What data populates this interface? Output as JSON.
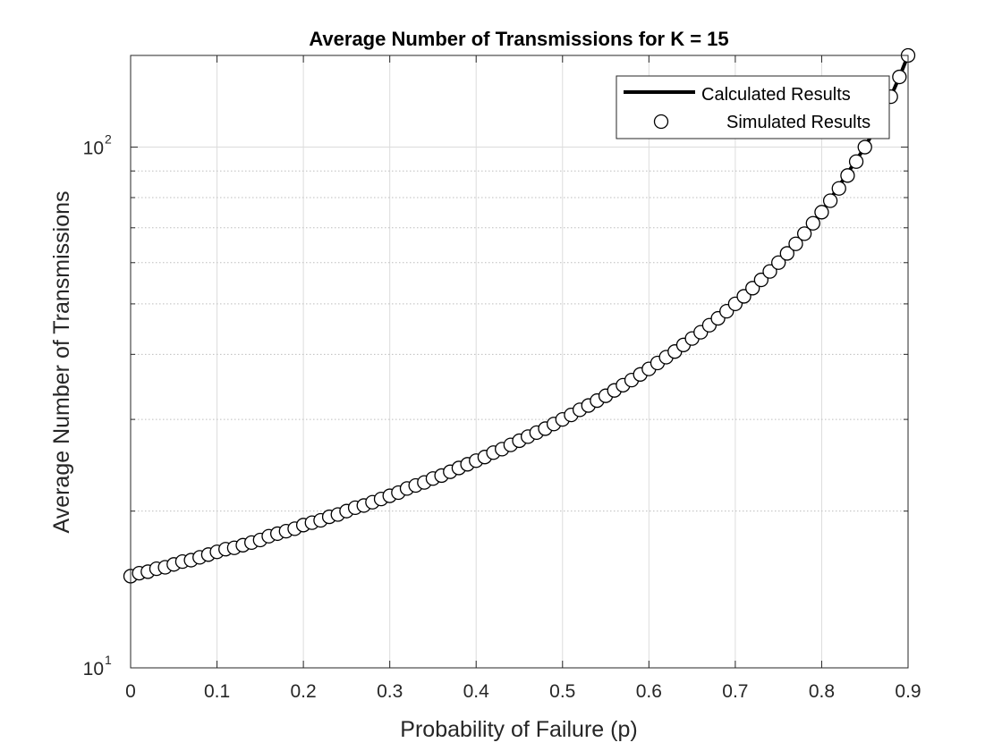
{
  "chart_data": {
    "type": "line",
    "title": "Average Number of Transmissions for K = 15",
    "xlabel": "Probability of Failure (p)",
    "ylabel": "Average Number of Transmissions",
    "xlim": [
      0,
      0.9
    ],
    "ylim": [
      10,
      150
    ],
    "yscale": "log",
    "grid": true,
    "legend_position": "top-right",
    "x_ticks": [
      "0",
      "0.1",
      "0.2",
      "0.3",
      "0.4",
      "0.5",
      "0.6",
      "0.7",
      "0.8",
      "0.9"
    ],
    "y_ticks": [
      {
        "base": "10",
        "exp": "1"
      },
      {
        "base": "10",
        "exp": "2"
      }
    ],
    "legend": [
      {
        "label": "Calculated Results",
        "style": "line"
      },
      {
        "label": "Simulated Results",
        "style": "marker"
      }
    ],
    "series": [
      {
        "name": "Calculated Results",
        "style": "line",
        "color": "#000000",
        "x": [
          0,
          0.05,
          0.1,
          0.15,
          0.2,
          0.25,
          0.3,
          0.35,
          0.4,
          0.45,
          0.5,
          0.55,
          0.6,
          0.65,
          0.7,
          0.75,
          0.8,
          0.85,
          0.86,
          0.87,
          0.88,
          0.89,
          0.9
        ],
        "y": [
          15.0,
          15.8,
          16.7,
          17.6,
          18.8,
          20.0,
          21.4,
          23.1,
          25.0,
          27.3,
          30.0,
          33.3,
          37.5,
          42.9,
          50.0,
          60.0,
          75.0,
          100.0,
          107.1,
          115.4,
          125.0,
          136.4,
          150.0
        ]
      },
      {
        "name": "Simulated Results",
        "style": "marker",
        "marker": "circle",
        "color": "#000000",
        "x": [
          0,
          0.01,
          0.02,
          0.03,
          0.04,
          0.05,
          0.06,
          0.07,
          0.08,
          0.09,
          0.1,
          0.11,
          0.12,
          0.13,
          0.14,
          0.15,
          0.16,
          0.17,
          0.18,
          0.19,
          0.2,
          0.21,
          0.22,
          0.23,
          0.24,
          0.25,
          0.26,
          0.27,
          0.28,
          0.29,
          0.3,
          0.31,
          0.32,
          0.33,
          0.34,
          0.35,
          0.36,
          0.37,
          0.38,
          0.39,
          0.4,
          0.41,
          0.42,
          0.43,
          0.44,
          0.45,
          0.46,
          0.47,
          0.48,
          0.49,
          0.5,
          0.51,
          0.52,
          0.53,
          0.54,
          0.55,
          0.56,
          0.57,
          0.58,
          0.59,
          0.6,
          0.61,
          0.62,
          0.63,
          0.64,
          0.65,
          0.66,
          0.67,
          0.68,
          0.69,
          0.7,
          0.71,
          0.72,
          0.73,
          0.74,
          0.75,
          0.76,
          0.77,
          0.78,
          0.79,
          0.8,
          0.81,
          0.82,
          0.83,
          0.84,
          0.85,
          0.86,
          0.87,
          0.88,
          0.89,
          0.9
        ],
        "y": [
          15.0,
          15.2,
          15.3,
          15.5,
          15.6,
          15.8,
          16.0,
          16.1,
          16.3,
          16.5,
          16.7,
          16.9,
          17.0,
          17.2,
          17.4,
          17.6,
          17.9,
          18.1,
          18.3,
          18.5,
          18.8,
          19.0,
          19.2,
          19.5,
          19.7,
          20.0,
          20.3,
          20.5,
          20.8,
          21.1,
          21.4,
          21.7,
          22.1,
          22.4,
          22.7,
          23.1,
          23.4,
          23.8,
          24.2,
          24.6,
          25.0,
          25.4,
          25.9,
          26.3,
          26.8,
          27.3,
          27.8,
          28.3,
          28.8,
          29.4,
          30.0,
          30.6,
          31.3,
          31.9,
          32.6,
          33.3,
          34.1,
          34.9,
          35.7,
          36.6,
          37.5,
          38.5,
          39.5,
          40.5,
          41.7,
          42.9,
          44.1,
          45.5,
          46.9,
          48.4,
          50.0,
          51.7,
          53.6,
          55.6,
          57.7,
          60.0,
          62.5,
          65.2,
          68.2,
          71.4,
          75.0,
          78.9,
          83.3,
          88.2,
          93.8,
          100.0,
          107.1,
          115.4,
          125.0,
          136.4,
          150.0
        ]
      }
    ]
  }
}
